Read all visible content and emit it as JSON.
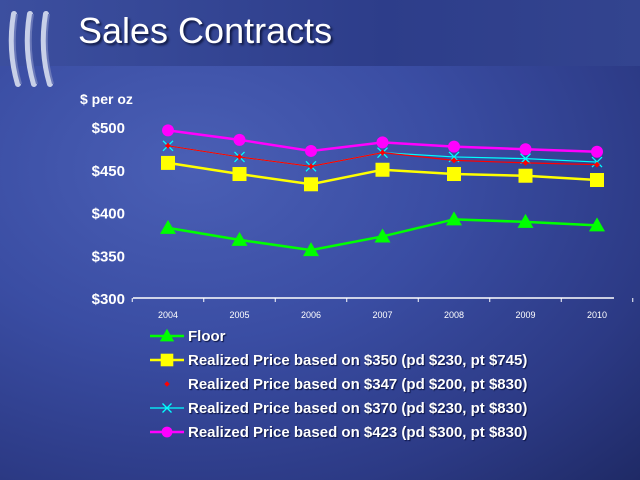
{
  "slide": {
    "title": "Sales Contracts"
  },
  "chart_data": {
    "type": "line",
    "title": "",
    "ylabel": "$ per oz",
    "ylim": [
      300,
      500
    ],
    "yticks": [
      300,
      350,
      400,
      450,
      500
    ],
    "ytick_labels": [
      "$300",
      "$350",
      "$400",
      "$450",
      "$500"
    ],
    "categories": [
      "2004",
      "2005",
      "2006",
      "2007",
      "2008",
      "2009",
      "2010"
    ],
    "grid": false,
    "legend_placement": "bottom",
    "series": [
      {
        "name": "Floor",
        "color": "#00ff00",
        "marker": "triangle",
        "values": [
          382,
          368,
          356,
          372,
          392,
          389,
          385
        ]
      },
      {
        "name": "Realized Price based on $350 (pd $230, pt $745)",
        "color": "#ffff00",
        "marker": "square",
        "values": [
          458,
          445,
          433,
          450,
          445,
          443,
          438
        ]
      },
      {
        "name": "Realized Price based on $347 (pd $200, pt $830)",
        "color": "#ff0000",
        "marker": "diamond",
        "values": [
          478,
          465,
          454,
          470,
          461,
          458,
          456
        ]
      },
      {
        "name": "Realized Price based on $370 (pd $230, pt $830)",
        "color": "#00ffff",
        "marker": "x",
        "values": [
          478,
          465,
          454,
          470,
          465,
          463,
          459
        ]
      },
      {
        "name": "Realized Price based on $423 (pd $300, pt $830)",
        "color": "#ff00ff",
        "marker": "circle",
        "values": [
          496,
          485,
          472,
          482,
          477,
          474,
          471
        ]
      }
    ]
  }
}
